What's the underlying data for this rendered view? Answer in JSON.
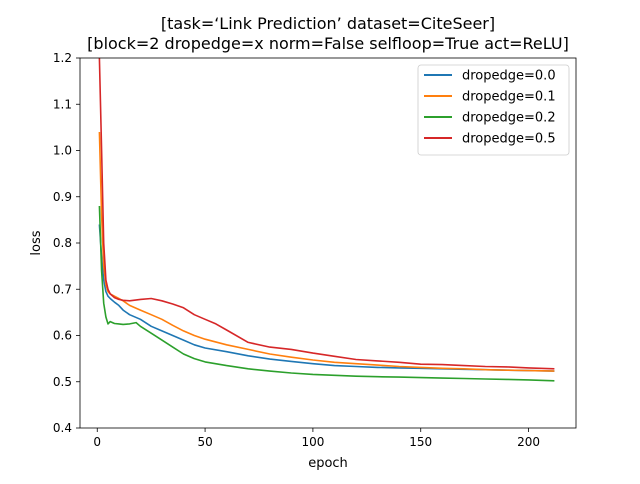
{
  "chart_data": {
    "type": "line",
    "title_line1": "[task=‘Link Prediction’ dataset=CiteSeer]",
    "title_line2": "[block=2 dropedge=x norm=False selfloop=True act=ReLU]",
    "xlabel": "epoch",
    "ylabel": "loss",
    "xlim": [
      -8,
      222
    ],
    "ylim": [
      0.4,
      1.2
    ],
    "xticks": [
      "0",
      "50",
      "100",
      "150",
      "200"
    ],
    "yticks": [
      "0.4",
      "0.5",
      "0.6",
      "0.7",
      "0.8",
      "0.9",
      "1.0",
      "1.1",
      "1.2"
    ],
    "grid": false,
    "legend_position": "top-right",
    "series": [
      {
        "name": "dropedge=0.0",
        "color": "#1f77b4",
        "x": [
          1,
          2,
          3,
          4,
          5,
          6,
          8,
          10,
          12,
          15,
          20,
          25,
          30,
          35,
          40,
          45,
          50,
          60,
          70,
          80,
          90,
          100,
          110,
          120,
          130,
          140,
          150,
          160,
          170,
          180,
          190,
          200,
          212
        ],
        "values": [
          0.84,
          0.77,
          0.72,
          0.695,
          0.685,
          0.68,
          0.672,
          0.665,
          0.655,
          0.645,
          0.635,
          0.62,
          0.61,
          0.6,
          0.59,
          0.58,
          0.573,
          0.565,
          0.556,
          0.549,
          0.544,
          0.539,
          0.535,
          0.533,
          0.531,
          0.53,
          0.529,
          0.528,
          0.527,
          0.526,
          0.525,
          0.524,
          0.523
        ]
      },
      {
        "name": "dropedge=0.1",
        "color": "#ff7f0e",
        "x": [
          1,
          2,
          3,
          4,
          5,
          6,
          8,
          10,
          12,
          15,
          20,
          25,
          30,
          35,
          40,
          45,
          50,
          60,
          70,
          80,
          90,
          100,
          110,
          120,
          130,
          140,
          150,
          160,
          170,
          180,
          190,
          200,
          212
        ],
        "values": [
          1.04,
          0.86,
          0.75,
          0.71,
          0.695,
          0.69,
          0.685,
          0.68,
          0.675,
          0.665,
          0.655,
          0.645,
          0.635,
          0.622,
          0.61,
          0.6,
          0.592,
          0.58,
          0.57,
          0.56,
          0.553,
          0.547,
          0.542,
          0.539,
          0.536,
          0.533,
          0.531,
          0.529,
          0.528,
          0.526,
          0.525,
          0.524,
          0.523
        ]
      },
      {
        "name": "dropedge=0.2",
        "color": "#2ca02c",
        "x": [
          1,
          2,
          3,
          4,
          5,
          6,
          8,
          10,
          12,
          15,
          18,
          20,
          25,
          30,
          35,
          40,
          45,
          50,
          60,
          70,
          80,
          90,
          100,
          110,
          120,
          130,
          140,
          150,
          160,
          170,
          180,
          190,
          200,
          212
        ],
        "values": [
          0.88,
          0.74,
          0.67,
          0.64,
          0.625,
          0.63,
          0.626,
          0.625,
          0.624,
          0.625,
          0.628,
          0.62,
          0.605,
          0.59,
          0.575,
          0.56,
          0.55,
          0.543,
          0.535,
          0.528,
          0.523,
          0.519,
          0.516,
          0.514,
          0.512,
          0.511,
          0.51,
          0.509,
          0.508,
          0.507,
          0.506,
          0.505,
          0.504,
          0.502
        ]
      },
      {
        "name": "dropedge=0.5",
        "color": "#d62728",
        "x": [
          1,
          2,
          3,
          4,
          5,
          6,
          8,
          10,
          12,
          15,
          20,
          25,
          30,
          35,
          40,
          45,
          50,
          55,
          60,
          70,
          80,
          90,
          100,
          110,
          120,
          130,
          140,
          150,
          160,
          170,
          180,
          190,
          200,
          212
        ],
        "values": [
          1.2,
          1.0,
          0.8,
          0.72,
          0.7,
          0.69,
          0.682,
          0.678,
          0.676,
          0.675,
          0.678,
          0.68,
          0.675,
          0.668,
          0.66,
          0.645,
          0.635,
          0.625,
          0.612,
          0.585,
          0.575,
          0.57,
          0.562,
          0.555,
          0.548,
          0.545,
          0.542,
          0.538,
          0.537,
          0.535,
          0.533,
          0.532,
          0.53,
          0.528
        ]
      }
    ]
  }
}
